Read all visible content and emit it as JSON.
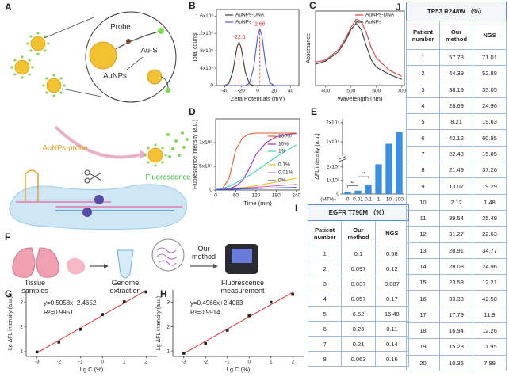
{
  "panel_labels": [
    "A",
    "B",
    "C",
    "D",
    "E",
    "F",
    "G",
    "H",
    "I",
    "J"
  ],
  "schematic_a": {
    "probe": "Probe",
    "aunps": "AuNPs",
    "au_s": "Au-S",
    "aunps_probe": "AuNPs-probe",
    "fluorescence": "Fluorescence"
  },
  "workflow_f": {
    "tissue": "Tissue samples",
    "extraction": "Genome extraction",
    "method": "Our method",
    "measurement": "Fluorescence measurement"
  },
  "chart_data": [
    {
      "type": "line",
      "x_label": "Zeta Potentials (mV)",
      "y_label": "Total counts",
      "x": [
        -40,
        -35,
        -30,
        -25,
        -22.6,
        -20,
        -15,
        -10,
        -5,
        0,
        2.66,
        5,
        10,
        15,
        20,
        25,
        30,
        40
      ],
      "series": [
        {
          "name": "AuNPs-DNA",
          "color": "#3a3a3a",
          "values": [
            0,
            46000,
            330000,
            890000,
            1000000,
            870000,
            310000,
            42000,
            0,
            0,
            0,
            0,
            0,
            0,
            0,
            0,
            0,
            0
          ]
        },
        {
          "name": "AuNPs",
          "color": "#4a56d8",
          "values": [
            0,
            0,
            0,
            0,
            0,
            0,
            0,
            52000,
            400000,
            1130000,
            1300000,
            1170000,
            440000,
            62000,
            0,
            0,
            0,
            0
          ]
        }
      ],
      "annotations": [
        -22.6,
        2.66
      ],
      "annotation_color": "#e03030",
      "xlim": [
        -50,
        50
      ],
      "xticks": [
        -40,
        -20,
        0,
        20,
        40
      ],
      "ylim": [
        0,
        1750000
      ],
      "yticks": [
        0,
        {
          "value": 400000,
          "label": "4x10⁵"
        },
        {
          "value": 800000,
          "label": "8x10⁵"
        },
        {
          "value": 1200000,
          "label": "1.2x10⁶"
        },
        {
          "value": 1600000,
          "label": "1.6x10⁶"
        }
      ]
    },
    {
      "type": "line",
      "x_label": "Wavelength (nm)",
      "y_label": "Absorbance",
      "x": [
        360,
        400,
        450,
        480,
        500,
        520,
        540,
        560,
        580,
        600,
        650,
        700
      ],
      "series": [
        {
          "name": "AuNPs-DNA",
          "color": "#d94040",
          "values": [
            0.28,
            0.3,
            0.4,
            0.52,
            0.62,
            0.7,
            0.68,
            0.57,
            0.42,
            0.32,
            0.2,
            0.14
          ]
        },
        {
          "name": "AuNPs",
          "color": "#3a3a3a",
          "values": [
            0.26,
            0.29,
            0.38,
            0.5,
            0.6,
            0.66,
            0.6,
            0.44,
            0.3,
            0.23,
            0.16,
            0.11
          ]
        }
      ],
      "xlim": [
        360,
        710
      ],
      "xticks": [
        400,
        500,
        600,
        700
      ],
      "ylim": [
        0.05,
        0.78
      ]
    },
    {
      "type": "line",
      "x_label": "Time (min)",
      "y_label": "Fluorescence intensity (a.u.)",
      "x": [
        0,
        20,
        40,
        60,
        80,
        100,
        120,
        150,
        180,
        210,
        240
      ],
      "series": [
        {
          "name": "100%",
          "color": "#e8572a",
          "values": [
            1000,
            3000,
            25000,
            85000,
            110000,
            118000,
            120000,
            120000,
            120000,
            120000,
            120000
          ]
        },
        {
          "name": "10%",
          "color": "#9b30c8",
          "values": [
            1000,
            1500,
            3000,
            8000,
            20000,
            45000,
            75000,
            100000,
            112000,
            117000,
            119000
          ]
        },
        {
          "name": "1%",
          "color": "#40d0c8",
          "values": [
            1000,
            3000,
            8000,
            15000,
            23000,
            31000,
            40000,
            55000,
            70000,
            83000,
            95000
          ]
        },
        {
          "name": "0.1%",
          "color": "#e8c020",
          "values": [
            1000,
            1500,
            2500,
            3500,
            5000,
            7000,
            9000,
            13000,
            17000,
            21000,
            25000
          ]
        },
        {
          "name": "0.01%",
          "color": "#e060b0",
          "values": [
            1000,
            1500,
            2000,
            3000,
            4000,
            5000,
            6000,
            7500,
            9000,
            10500,
            12000
          ]
        },
        {
          "name": "0%",
          "color": "#3050e0",
          "values": [
            1000,
            1200,
            1500,
            2000,
            2500,
            3000,
            3500,
            4000,
            4500,
            5000,
            5500
          ]
        }
      ],
      "xlim": [
        0,
        250
      ],
      "xticks": [
        0,
        60,
        120,
        180,
        240
      ],
      "ylim": [
        0,
        150000
      ],
      "yticks": [
        0,
        {
          "value": 50000,
          "label": "5x10⁴"
        },
        {
          "value": 100000,
          "label": "1x10⁵"
        }
      ]
    },
    {
      "type": "bar",
      "x_label": "(MT%)",
      "y_label": "ΔFL intensity (a.u.)",
      "categories": [
        "0",
        "0.01",
        "0.1",
        "1",
        "10",
        "100"
      ],
      "values": [
        150,
        250,
        700,
        2200,
        9000,
        15000
      ],
      "color": "#3b8fe0",
      "annotations": [
        "**",
        "**"
      ],
      "ylim": [
        0,
        22000
      ],
      "y_break": 2500,
      "yticks": [
        0,
        {
          "value": 1000,
          "label": "1x10³"
        },
        {
          "value": 2000,
          "label": "2x10³"
        },
        {
          "value": 10000,
          "label": "1x10⁴"
        },
        {
          "value": 20000,
          "label": "2x10⁴"
        }
      ]
    },
    {
      "type": "scatter",
      "x_label": "Lg C (%)",
      "y_label": "Lg ΔFL intensity (a.u.)",
      "equation": "y=0.5058x+2.4652",
      "r_squared": "R²=0.9951",
      "x": [
        -3,
        -2,
        -1,
        0,
        1,
        2
      ],
      "values": [
        0.98,
        1.38,
        1.9,
        2.5,
        3.02,
        3.42
      ],
      "color": "#222222",
      "fit_line": {
        "x": [
          -3,
          2
        ],
        "values": [
          0.948,
          3.477
        ],
        "color": "#e03030"
      },
      "xlim": [
        -3.5,
        2.5
      ],
      "xticks": [
        -3,
        -2,
        -1,
        0,
        1,
        2
      ],
      "ylim": [
        0.8,
        3.5
      ],
      "yticks": [
        1,
        2,
        3
      ]
    },
    {
      "type": "scatter",
      "x_label": "Lg C (%)",
      "y_label": "Lg ΔFL intensity (a.u.)",
      "equation": "y=0.4966x+2.4083",
      "r_squared": "R²=0.9914",
      "x": [
        -3,
        -2,
        -1,
        0,
        1,
        2
      ],
      "values": [
        0.93,
        1.33,
        1.86,
        2.45,
        3.0,
        3.32
      ],
      "color": "#222222",
      "fit_line": {
        "x": [
          -3,
          2
        ],
        "values": [
          0.918,
          3.401
        ],
        "color": "#e03030"
      },
      "xlim": [
        -3.5,
        2.5
      ],
      "xticks": [
        -3,
        -2,
        -1,
        0,
        1,
        2
      ],
      "ylim": [
        0.8,
        3.5
      ],
      "yticks": [
        1,
        2,
        3
      ]
    }
  ],
  "tables": [
    {
      "title": "EGFR T790M （%）",
      "columns": [
        "Patient number",
        "Our method",
        "NGS"
      ],
      "rows": [
        [
          "1",
          "0.1",
          "0.58"
        ],
        [
          "2",
          "0.097",
          "0.12"
        ],
        [
          "3",
          "0.037",
          "0.087"
        ],
        [
          "4",
          "0.057",
          "0.17"
        ],
        [
          "5",
          "6.52",
          "15.48"
        ],
        [
          "6",
          "0.23",
          "0.11"
        ],
        [
          "7",
          "0.21",
          "0.14"
        ],
        [
          "8",
          "0.063",
          "0.16"
        ]
      ]
    },
    {
      "title": "TP53 R248W （%）",
      "columns": [
        "Patient number",
        "Our method",
        "NGS"
      ],
      "rows": [
        [
          "1",
          "57.73",
          "71.01"
        ],
        [
          "2",
          "44.39",
          "52.88"
        ],
        [
          "3",
          "38.19",
          "35.05"
        ],
        [
          "4",
          "28.69",
          "24.96"
        ],
        [
          "5",
          "8.21",
          "19.63"
        ],
        [
          "6",
          "42.12",
          "60.95"
        ],
        [
          "7",
          "22.48",
          "15.05"
        ],
        [
          "8",
          "21.49",
          "37.26"
        ],
        [
          "9",
          "13.07",
          "19.29"
        ],
        [
          "10",
          "2.12",
          "1.48"
        ],
        [
          "11",
          "39.54",
          "25.49"
        ],
        [
          "12",
          "31.27",
          "22.63"
        ],
        [
          "13",
          "28.91",
          "34.77"
        ],
        [
          "14",
          "28.08",
          "24.96"
        ],
        [
          "15",
          "23.53",
          "12.21"
        ],
        [
          "16",
          "33.33",
          "42.58"
        ],
        [
          "17",
          "17.79",
          "11.9"
        ],
        [
          "18",
          "16.94",
          "12.26"
        ],
        [
          "19",
          "15.28",
          "11.95"
        ],
        [
          "20",
          "10.36",
          "7.99"
        ]
      ]
    }
  ]
}
